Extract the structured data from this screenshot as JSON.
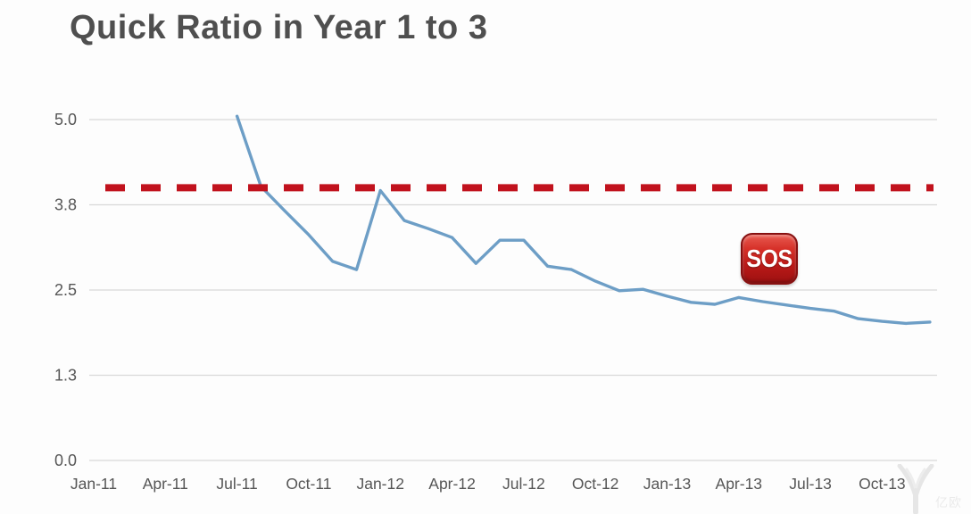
{
  "chart": {
    "title": "Quick Ratio in Year 1 to 3",
    "sos_label": "SOS"
  },
  "watermark": {
    "logo": "iyiou-leaf-logo",
    "text": "亿欧"
  },
  "chart_data": {
    "type": "line",
    "title": "Quick Ratio in Year 1 to 3",
    "series_name": "Quick Ratio",
    "x": [
      "Jul-11",
      "Aug-11",
      "Sep-11",
      "Oct-11",
      "Nov-11",
      "Dec-11",
      "Jan-12",
      "Feb-12",
      "Mar-12",
      "Apr-12",
      "May-12",
      "Jun-12",
      "Jul-12",
      "Aug-12",
      "Sep-12",
      "Oct-12",
      "Nov-12",
      "Dec-12",
      "Jan-13",
      "Feb-13",
      "Mar-13",
      "Apr-13",
      "May-13",
      "Jun-13",
      "Jul-13",
      "Aug-13",
      "Sep-13",
      "Oct-13",
      "Nov-13",
      "Dec-13"
    ],
    "values": [
      5.05,
      4.02,
      3.66,
      3.31,
      2.92,
      2.8,
      3.96,
      3.52,
      3.4,
      3.27,
      2.89,
      3.23,
      3.23,
      2.85,
      2.8,
      2.63,
      2.49,
      2.51,
      2.41,
      2.32,
      2.29,
      2.39,
      2.33,
      2.28,
      2.23,
      2.19,
      2.08,
      2.04,
      2.01,
      2.03
    ],
    "x_start_index": 6,
    "x_total_months": 36,
    "x_axis_ticks": [
      "Jan-11",
      "Apr-11",
      "Jul-11",
      "Oct-11",
      "Jan-12",
      "Apr-12",
      "Jul-12",
      "Oct-12",
      "Jan-13",
      "Apr-13",
      "Jul-13",
      "Oct-13"
    ],
    "y_axis_ticks": [
      "5.0",
      "3.8",
      "2.5",
      "1.3",
      "0.0"
    ],
    "y_tick_values": [
      5,
      3.75,
      2.5,
      1.25,
      0
    ],
    "ylim": [
      0,
      5
    ],
    "xlabel": "",
    "ylabel": "",
    "grid": true,
    "legend": "none",
    "line_color": "#6d9ec6",
    "grid_color": "#d9d9d9",
    "threshold_line": {
      "value": 4.0,
      "style": "dashed",
      "color": "#c1121d"
    },
    "annotation": {
      "type": "sos-emoji-badge",
      "near_x": "Apr-13",
      "near_y": 3.0
    }
  }
}
